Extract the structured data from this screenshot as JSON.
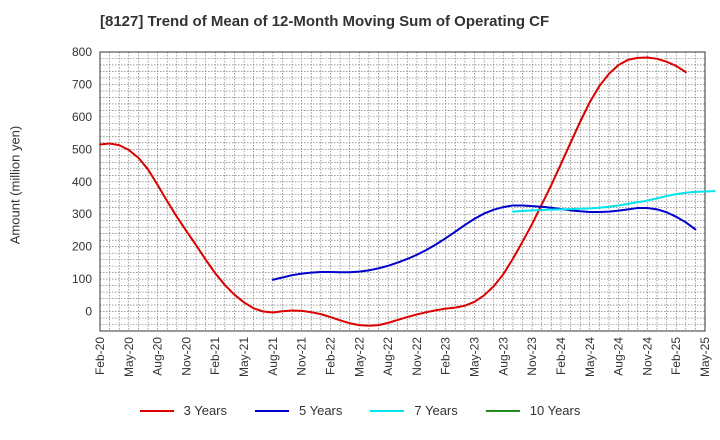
{
  "chart_data": {
    "type": "line",
    "title": "[8127]  Trend of Mean of 12-Month Moving Sum of Operating CF",
    "xlabel": "",
    "ylabel": "Amount (million yen)",
    "ylim": [
      -60,
      800
    ],
    "yticks": [
      0,
      100,
      200,
      300,
      400,
      500,
      600,
      700,
      800
    ],
    "x_tick_labels": [
      "Feb-20",
      "May-20",
      "Aug-20",
      "Nov-20",
      "Feb-21",
      "May-21",
      "Aug-21",
      "Nov-21",
      "Feb-22",
      "May-22",
      "Aug-22",
      "Nov-22",
      "Feb-23",
      "May-23",
      "Aug-23",
      "Nov-23",
      "Feb-24",
      "May-24",
      "Aug-24",
      "Nov-24",
      "Feb-25",
      "May-25"
    ],
    "grid": true,
    "legend_position": "bottom",
    "series": [
      {
        "name": "3 Years",
        "color": "#dd0000",
        "start_index": 0,
        "values": [
          515,
          518,
          513,
          498,
          474,
          438,
          390,
          340,
          292,
          248,
          205,
          160,
          118,
          82,
          52,
          28,
          10,
          0,
          -3,
          1,
          3,
          2,
          -2,
          -8,
          -17,
          -27,
          -36,
          -42,
          -44,
          -42,
          -35,
          -26,
          -17,
          -9,
          -2,
          4,
          9,
          12,
          18,
          30,
          50,
          78,
          115,
          163,
          215,
          270,
          330,
          390,
          455,
          520,
          585,
          645,
          695,
          733,
          760,
          776,
          782,
          783,
          779,
          770,
          757,
          738
        ],
        "marker": null
      },
      {
        "name": "5 Years",
        "color": "#0000cc",
        "start_index": 18,
        "values": [
          98,
          105,
          112,
          117,
          120,
          122,
          122,
          121,
          121,
          123,
          127,
          133,
          141,
          151,
          162,
          175,
          190,
          207,
          226,
          246,
          267,
          286,
          302,
          314,
          322,
          327,
          327,
          325,
          323,
          320,
          316,
          312,
          309,
          307,
          307,
          308,
          311,
          315,
          319,
          319,
          315,
          306,
          292,
          275,
          253
        ]
      },
      {
        "name": "7 Years",
        "color": "#00e5ee",
        "start_index": 43,
        "values": [
          308,
          310,
          312,
          313,
          314,
          315,
          316,
          317,
          318,
          320,
          323,
          327,
          332,
          337,
          342,
          349,
          356,
          362,
          366,
          369,
          370,
          371
        ]
      },
      {
        "name": "10 Years",
        "color": "#228b22",
        "start_index": 0,
        "values": []
      }
    ]
  }
}
